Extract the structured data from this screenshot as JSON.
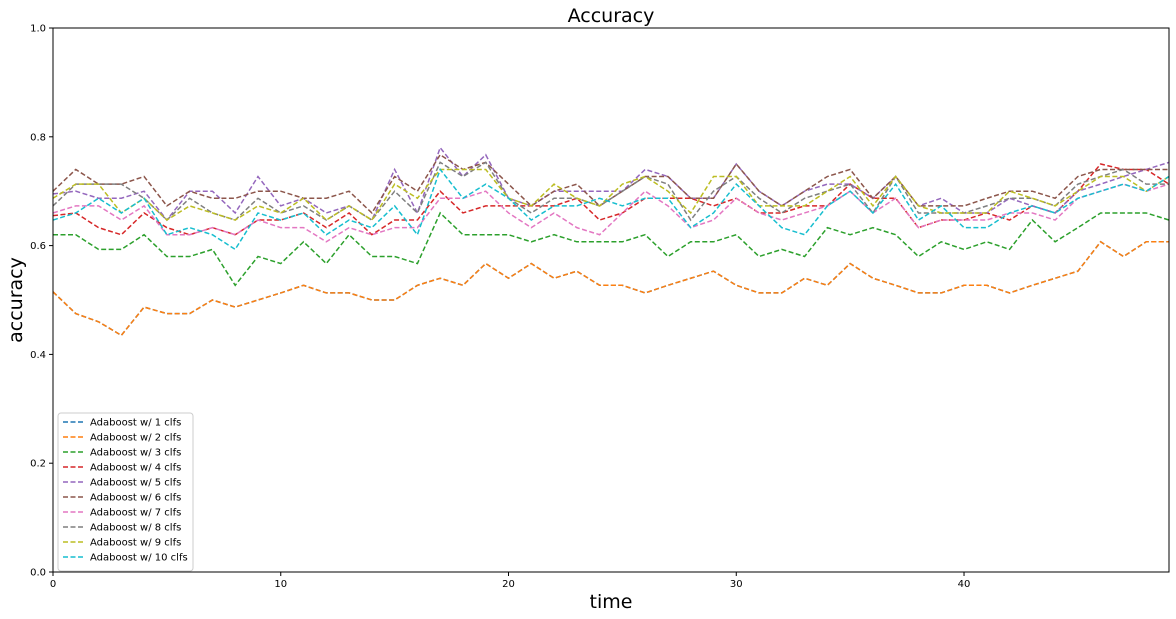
{
  "chart_data": {
    "type": "line",
    "title": "Accuracy",
    "xlabel": "time",
    "ylabel": "accuracy",
    "xlim": [
      0,
      49
    ],
    "ylim": [
      0,
      1.0
    ],
    "x_ticks": [
      0,
      10,
      20,
      30,
      40
    ],
    "y_ticks": [
      0.0,
      0.2,
      0.4,
      0.6,
      0.8,
      1.0
    ],
    "y_tick_labels": [
      "0.0",
      "0.2",
      "0.4",
      "0.6",
      "0.8",
      "1.0"
    ],
    "legend_position": "lower-left",
    "line_style": "dashed",
    "grid": false,
    "series": [
      {
        "name": "Adaboost w/ 1 clfs",
        "color": "#1f77b4",
        "values": [
          0.515,
          0.475,
          0.46,
          0.435,
          0.487,
          0.475,
          0.475,
          0.5,
          0.487,
          0.5,
          0.513,
          0.527,
          0.513,
          0.513,
          0.5,
          0.5,
          0.527,
          0.54,
          0.527,
          0.567,
          0.54,
          0.567,
          0.54,
          0.553,
          0.527,
          0.527,
          0.513,
          0.527,
          0.54,
          0.553,
          0.527,
          0.513,
          0.513,
          0.54,
          0.527,
          0.567,
          0.54,
          0.527,
          0.513,
          0.513,
          0.527,
          0.527,
          0.513,
          0.527,
          0.54,
          0.553,
          0.607,
          0.58,
          0.607,
          0.607
        ]
      },
      {
        "name": "Adaboost w/ 2 clfs",
        "color": "#ff7f0e",
        "values": [
          0.515,
          0.475,
          0.46,
          0.435,
          0.487,
          0.475,
          0.475,
          0.5,
          0.487,
          0.5,
          0.513,
          0.527,
          0.513,
          0.513,
          0.5,
          0.5,
          0.527,
          0.54,
          0.527,
          0.567,
          0.54,
          0.567,
          0.54,
          0.553,
          0.527,
          0.527,
          0.513,
          0.527,
          0.54,
          0.553,
          0.527,
          0.513,
          0.513,
          0.54,
          0.527,
          0.567,
          0.54,
          0.527,
          0.513,
          0.513,
          0.527,
          0.527,
          0.513,
          0.527,
          0.54,
          0.553,
          0.607,
          0.58,
          0.607,
          0.607
        ]
      },
      {
        "name": "Adaboost w/ 3 clfs",
        "color": "#2ca02c",
        "values": [
          0.62,
          0.62,
          0.593,
          0.593,
          0.62,
          0.58,
          0.58,
          0.593,
          0.527,
          0.58,
          0.567,
          0.607,
          0.567,
          0.62,
          0.58,
          0.58,
          0.567,
          0.66,
          0.62,
          0.62,
          0.62,
          0.607,
          0.62,
          0.607,
          0.607,
          0.607,
          0.62,
          0.58,
          0.607,
          0.607,
          0.62,
          0.58,
          0.593,
          0.58,
          0.633,
          0.62,
          0.633,
          0.62,
          0.58,
          0.607,
          0.593,
          0.607,
          0.593,
          0.647,
          0.607,
          0.633,
          0.66,
          0.66,
          0.66,
          0.647
        ]
      },
      {
        "name": "Adaboost w/ 4 clfs",
        "color": "#d62728",
        "values": [
          0.655,
          0.66,
          0.633,
          0.62,
          0.66,
          0.633,
          0.62,
          0.633,
          0.62,
          0.647,
          0.647,
          0.66,
          0.633,
          0.66,
          0.62,
          0.647,
          0.647,
          0.7,
          0.66,
          0.673,
          0.673,
          0.673,
          0.673,
          0.687,
          0.647,
          0.66,
          0.687,
          0.687,
          0.687,
          0.673,
          0.687,
          0.66,
          0.66,
          0.673,
          0.673,
          0.713,
          0.687,
          0.687,
          0.633,
          0.647,
          0.647,
          0.66,
          0.647,
          0.673,
          0.66,
          0.7,
          0.75,
          0.74,
          0.74,
          0.713
        ]
      },
      {
        "name": "Adaboost w/ 5 clfs",
        "color": "#9467bd",
        "values": [
          0.695,
          0.7,
          0.687,
          0.687,
          0.7,
          0.647,
          0.7,
          0.7,
          0.66,
          0.727,
          0.673,
          0.687,
          0.66,
          0.673,
          0.647,
          0.74,
          0.66,
          0.78,
          0.727,
          0.767,
          0.687,
          0.673,
          0.7,
          0.7,
          0.7,
          0.7,
          0.74,
          0.727,
          0.687,
          0.687,
          0.75,
          0.7,
          0.673,
          0.7,
          0.713,
          0.713,
          0.687,
          0.727,
          0.673,
          0.687,
          0.66,
          0.66,
          0.687,
          0.673,
          0.66,
          0.7,
          0.713,
          0.727,
          0.74,
          0.753
        ]
      },
      {
        "name": "Adaboost w/ 6 clfs",
        "color": "#8c564b",
        "values": [
          0.7,
          0.74,
          0.713,
          0.713,
          0.727,
          0.673,
          0.7,
          0.687,
          0.687,
          0.7,
          0.7,
          0.687,
          0.687,
          0.7,
          0.66,
          0.727,
          0.7,
          0.767,
          0.74,
          0.753,
          0.713,
          0.673,
          0.7,
          0.713,
          0.673,
          0.7,
          0.727,
          0.727,
          0.687,
          0.687,
          0.75,
          0.7,
          0.673,
          0.7,
          0.727,
          0.74,
          0.687,
          0.727,
          0.673,
          0.673,
          0.673,
          0.687,
          0.7,
          0.7,
          0.687,
          0.727,
          0.74,
          0.74,
          0.74,
          0.74
        ]
      },
      {
        "name": "Adaboost w/ 7 clfs",
        "color": "#e377c2",
        "values": [
          0.66,
          0.673,
          0.673,
          0.647,
          0.673,
          0.62,
          0.62,
          0.633,
          0.62,
          0.647,
          0.633,
          0.633,
          0.607,
          0.633,
          0.62,
          0.633,
          0.633,
          0.687,
          0.687,
          0.7,
          0.66,
          0.633,
          0.66,
          0.633,
          0.62,
          0.66,
          0.7,
          0.673,
          0.633,
          0.647,
          0.687,
          0.66,
          0.647,
          0.66,
          0.673,
          0.7,
          0.66,
          0.687,
          0.633,
          0.647,
          0.647,
          0.647,
          0.66,
          0.66,
          0.647,
          0.687,
          0.7,
          0.713,
          0.7,
          0.713
        ]
      },
      {
        "name": "Adaboost w/ 8 clfs",
        "color": "#7f7f7f",
        "values": [
          0.673,
          0.713,
          0.713,
          0.713,
          0.687,
          0.647,
          0.687,
          0.66,
          0.647,
          0.687,
          0.66,
          0.673,
          0.647,
          0.673,
          0.647,
          0.7,
          0.66,
          0.753,
          0.727,
          0.753,
          0.687,
          0.66,
          0.687,
          0.687,
          0.673,
          0.7,
          0.727,
          0.713,
          0.647,
          0.7,
          0.727,
          0.687,
          0.66,
          0.687,
          0.7,
          0.713,
          0.66,
          0.727,
          0.66,
          0.66,
          0.66,
          0.673,
          0.687,
          0.687,
          0.673,
          0.713,
          0.727,
          0.74,
          0.713,
          0.713
        ]
      },
      {
        "name": "Adaboost w/ 9 clfs",
        "color": "#bcbd22",
        "values": [
          0.687,
          0.713,
          0.713,
          0.66,
          0.687,
          0.647,
          0.673,
          0.66,
          0.647,
          0.673,
          0.66,
          0.687,
          0.647,
          0.673,
          0.647,
          0.713,
          0.687,
          0.74,
          0.74,
          0.74,
          0.687,
          0.673,
          0.713,
          0.687,
          0.673,
          0.713,
          0.727,
          0.7,
          0.66,
          0.727,
          0.727,
          0.673,
          0.673,
          0.673,
          0.7,
          0.727,
          0.673,
          0.727,
          0.673,
          0.66,
          0.66,
          0.66,
          0.7,
          0.687,
          0.673,
          0.7,
          0.727,
          0.727,
          0.7,
          0.727
        ]
      },
      {
        "name": "Adaboost w/ 10 clfs",
        "color": "#17becf",
        "values": [
          0.647,
          0.66,
          0.687,
          0.66,
          0.687,
          0.62,
          0.633,
          0.62,
          0.593,
          0.66,
          0.647,
          0.66,
          0.62,
          0.647,
          0.633,
          0.673,
          0.62,
          0.74,
          0.687,
          0.713,
          0.687,
          0.647,
          0.673,
          0.673,
          0.687,
          0.673,
          0.687,
          0.687,
          0.633,
          0.66,
          0.713,
          0.673,
          0.633,
          0.62,
          0.673,
          0.7,
          0.66,
          0.713,
          0.647,
          0.673,
          0.633,
          0.633,
          0.66,
          0.673,
          0.66,
          0.687,
          0.7,
          0.713,
          0.7,
          0.727
        ]
      }
    ]
  }
}
